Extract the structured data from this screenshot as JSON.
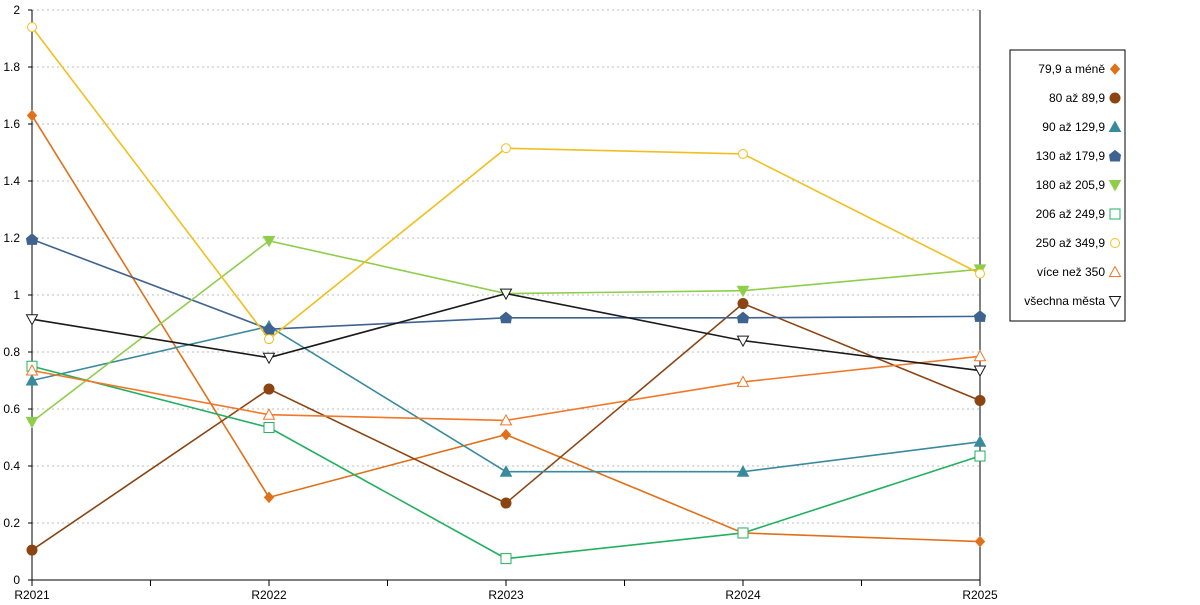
{
  "chart_data": {
    "type": "line",
    "title": "",
    "xlabel": "",
    "ylabel": "",
    "categories": [
      "R2021",
      "R2022",
      "R2023",
      "R2024",
      "R2025"
    ],
    "ylim": [
      0,
      2
    ],
    "yticks": [
      "0",
      "0.2",
      "0.4",
      "0.6",
      "0.8",
      "1",
      "1.2",
      "1.4",
      "1.6",
      "1.8",
      "2"
    ],
    "grid": "horizontal-dotted",
    "legend_position": "right",
    "series": [
      {
        "name": "79,9 a méně",
        "color": "#e0701a",
        "marker": "diamond",
        "values": [
          1.63,
          0.29,
          0.51,
          0.165,
          0.135
        ]
      },
      {
        "name": "80 až 89,9",
        "color": "#8b4513",
        "marker": "circle-filled",
        "values": [
          0.105,
          0.67,
          0.27,
          0.97,
          0.63
        ]
      },
      {
        "name": "90 až 129,9",
        "color": "#3a8a9e",
        "marker": "triangle-filled",
        "values": [
          0.7,
          0.89,
          0.38,
          0.38,
          0.485
        ]
      },
      {
        "name": "130 až 179,9",
        "color": "#3f6390",
        "marker": "pentagon-filled",
        "values": [
          1.195,
          0.88,
          0.92,
          0.92,
          0.925
        ]
      },
      {
        "name": "180 až 205,9",
        "color": "#8fce4a",
        "marker": "triangle-down-filled",
        "values": [
          0.555,
          1.19,
          1.005,
          1.015,
          1.09
        ]
      },
      {
        "name": "206 až 249,9",
        "color": "#22b060",
        "marker": "square-open",
        "values": [
          0.75,
          0.535,
          0.075,
          0.165,
          0.435
        ]
      },
      {
        "name": "250 až 349,9",
        "color": "#f0c020",
        "marker": "circle-open",
        "values": [
          1.94,
          0.845,
          1.515,
          1.495,
          1.075
        ]
      },
      {
        "name": "více než 350",
        "color": "#f07828",
        "marker": "triangle-open",
        "values": [
          0.735,
          0.58,
          0.56,
          0.695,
          0.785
        ]
      },
      {
        "name": "všechna města",
        "color": "#1a1a1a",
        "marker": "triangle-down-open",
        "values": [
          0.915,
          0.78,
          1.005,
          0.84,
          0.735
        ]
      }
    ]
  }
}
